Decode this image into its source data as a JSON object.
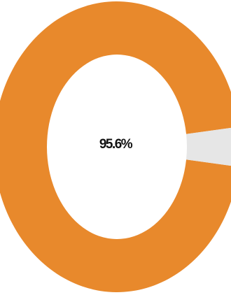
{
  "chart_data": {
    "type": "pie",
    "style": "donut",
    "values": [
      95.6,
      4.4
    ],
    "center_label": "95.6%",
    "colors": [
      "#E8892C",
      "#E6E6E6"
    ],
    "legend": "none"
  }
}
